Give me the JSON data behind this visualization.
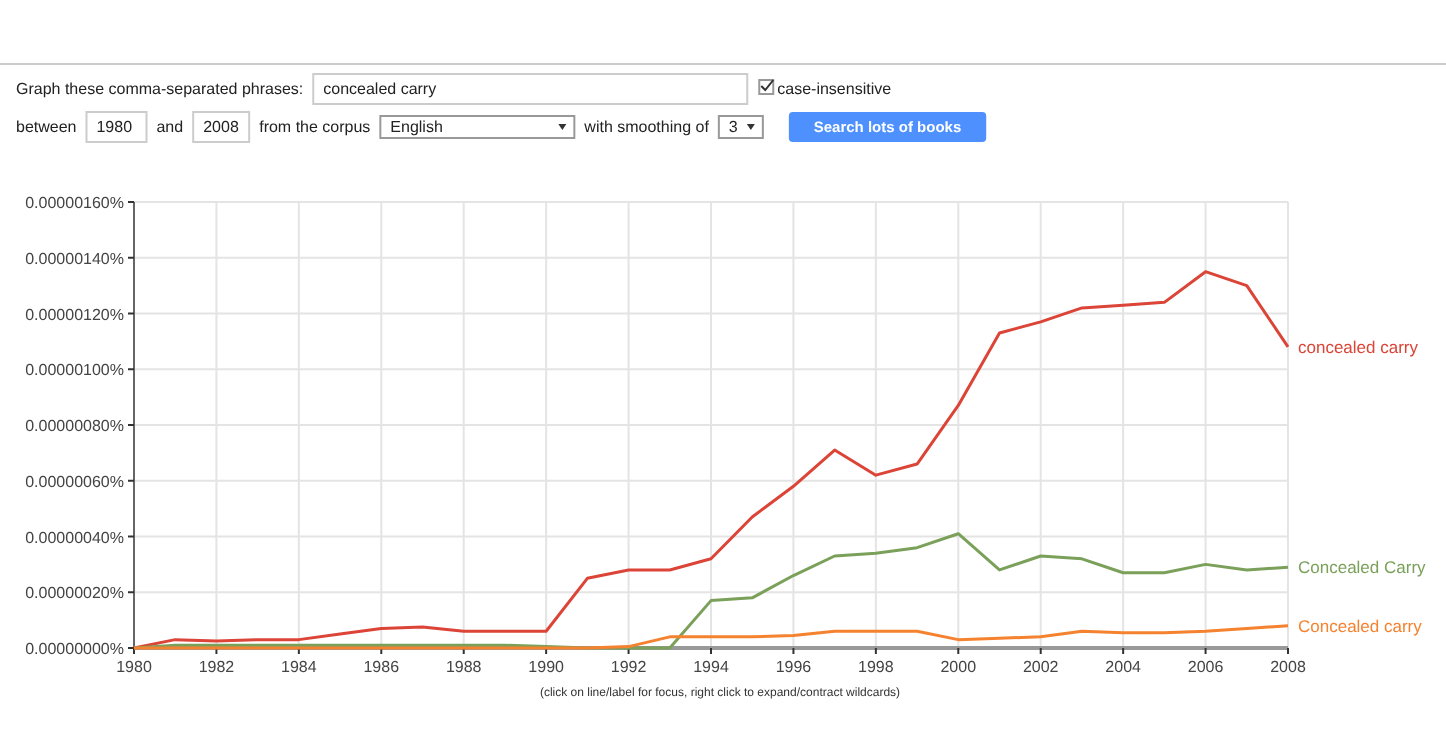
{
  "chart_data": {
    "type": "line",
    "x": [
      1980,
      1981,
      1982,
      1983,
      1984,
      1985,
      1986,
      1987,
      1988,
      1989,
      1990,
      1991,
      1992,
      1993,
      1994,
      1995,
      1996,
      1997,
      1998,
      1999,
      2000,
      2001,
      2002,
      2003,
      2004,
      2005,
      2006,
      2007,
      2008
    ],
    "series": [
      {
        "name": "concealed carry",
        "color": "#db4437",
        "values": [
          0,
          3e-08,
          2.5e-08,
          3e-08,
          3e-08,
          5e-08,
          7e-08,
          7.5e-08,
          6e-08,
          6e-08,
          6e-08,
          2.5e-07,
          2.8e-07,
          2.8e-07,
          3.2e-07,
          4.7e-07,
          5.8e-07,
          7.1e-07,
          6.2e-07,
          6.6e-07,
          8.7e-07,
          1.13e-06,
          1.17e-06,
          1.22e-06,
          1.23e-06,
          1.24e-06,
          1.35e-06,
          1.3e-06,
          1.08e-06
        ]
      },
      {
        "name": "Concealed Carry",
        "color": "#7aa05a",
        "values": [
          0,
          1e-08,
          1e-08,
          1e-08,
          1e-08,
          1e-08,
          1e-08,
          1e-08,
          1e-08,
          1e-08,
          5e-09,
          0,
          0,
          0,
          1.7e-07,
          1.8e-07,
          2.6e-07,
          3.3e-07,
          3.4e-07,
          3.6e-07,
          4.1e-07,
          2.8e-07,
          3.3e-07,
          3.2e-07,
          2.7e-07,
          2.7e-07,
          3e-07,
          2.8e-07,
          2.9e-07
        ]
      },
      {
        "name": "Concealed carry",
        "color": "#f5822f",
        "values": [
          0,
          0,
          0,
          0,
          0,
          0,
          0,
          0,
          0,
          0,
          0,
          0,
          5e-09,
          4e-08,
          4e-08,
          4e-08,
          4.5e-08,
          6e-08,
          6e-08,
          6e-08,
          3e-08,
          3.5e-08,
          4e-08,
          6e-08,
          5.5e-08,
          5.5e-08,
          6e-08,
          7e-08,
          8e-08
        ]
      }
    ],
    "xlim": [
      1980,
      2008
    ],
    "xticks": [
      1980,
      1982,
      1984,
      1986,
      1988,
      1990,
      1992,
      1994,
      1996,
      1998,
      2000,
      2002,
      2004,
      2006,
      2008
    ],
    "ylim": [
      0,
      1.6e-06
    ],
    "yticks": [
      {
        "value": 0,
        "label": "0.00000000%"
      },
      {
        "value": 2e-07,
        "label": "0.00000020%"
      },
      {
        "value": 4e-07,
        "label": "0.00000040%"
      },
      {
        "value": 6e-07,
        "label": "0.00000060%"
      },
      {
        "value": 8e-07,
        "label": "0.00000080%"
      },
      {
        "value": 1e-06,
        "label": "0.00000100%"
      },
      {
        "value": 1.2e-06,
        "label": "0.00000120%"
      },
      {
        "value": 1.4e-06,
        "label": "0.00000140%"
      },
      {
        "value": 1.6e-06,
        "label": "0.00000160%"
      }
    ],
    "grid": true,
    "legend": "right",
    "marker": "none",
    "line_style": "solid",
    "annotations": [
      "Graph these comma-separated phrases:",
      "concealed carry",
      "case-insensitive",
      "between",
      "1980",
      "and",
      "2008",
      "from the corpus",
      "English",
      "with smoothing of",
      "3",
      "Search lots of books",
      "(click on line/label for focus, right click to expand/contract wildcards)"
    ]
  }
}
